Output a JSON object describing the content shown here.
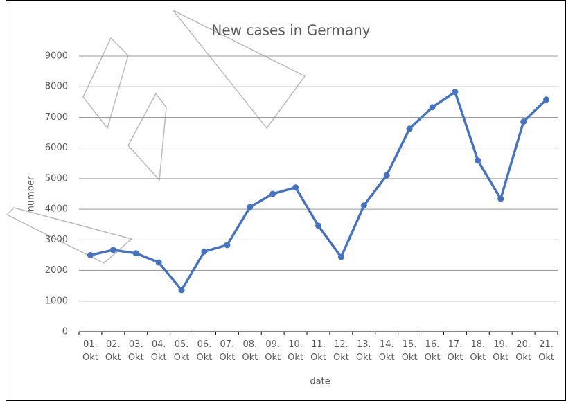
{
  "chart_data": {
    "type": "line",
    "title": "New cases in Germany",
    "x_label": "date",
    "y_label": "number",
    "categories": [
      "01. Okt",
      "02. Okt",
      "03. Okt",
      "04. Okt",
      "05. Okt",
      "06. Okt",
      "07. Okt",
      "08. Okt",
      "09. Okt",
      "10. Okt",
      "11. Okt",
      "12. Okt",
      "13. Okt",
      "14. Okt",
      "15. Okt",
      "16. Okt",
      "17. Okt",
      "18. Okt",
      "19. Okt",
      "20. Okt",
      "21. Okt"
    ],
    "values": [
      2500,
      2670,
      2560,
      2260,
      1360,
      2620,
      2830,
      4070,
      4500,
      4710,
      3460,
      2440,
      4120,
      5110,
      6630,
      7330,
      7830,
      5590,
      4340,
      6860,
      7580
    ],
    "color": "#4472c4",
    "ylim": [
      0,
      9000
    ],
    "yticks": [
      0,
      1000,
      2000,
      3000,
      4000,
      5000,
      6000,
      7000,
      8000,
      9000
    ],
    "grid": true
  }
}
